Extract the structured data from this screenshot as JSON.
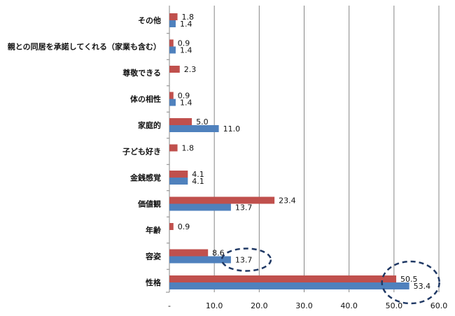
{
  "chart_data": {
    "type": "bar",
    "orientation": "horizontal",
    "categories": [
      "その他",
      "親との同居を承諾してくれる（家業も含む）",
      "尊敬できる",
      "体の相性",
      "家庭的",
      "子ども好き",
      "金銭感覚",
      "価値観",
      "年齢",
      "容姿",
      "性格"
    ],
    "series": [
      {
        "values": [
          1.8,
          0.9,
          2.3,
          0.9,
          5.0,
          1.8,
          4.1,
          23.4,
          0.9,
          8.6,
          50.5
        ],
        "color": "#c0504d"
      },
      {
        "values": [
          1.4,
          1.4,
          null,
          1.4,
          11.0,
          null,
          4.1,
          13.7,
          null,
          13.7,
          53.4
        ],
        "color": "#4f81bd"
      }
    ],
    "data_labels": [
      [
        "1.8",
        "0.9",
        "2.3",
        "0.9",
        "5.0",
        "1.8",
        "4.1",
        "23.4",
        "0.9",
        "8.6",
        "50.5"
      ],
      [
        "1.4",
        "1.4",
        "",
        "1.4",
        "11.0",
        "",
        "4.1",
        "13.7",
        "",
        "13.7",
        "53.4"
      ]
    ],
    "xlim": [
      0,
      60
    ],
    "x_ticks": [
      "-",
      "10.0",
      "20.0",
      "30.0",
      "40.0",
      "50.0",
      "60.0"
    ],
    "grid": "vertical",
    "highlights": [
      "容姿 13.7",
      "性格 50.5 / 53.4"
    ],
    "highlight_style": "dashed-ellipse",
    "highlight_color": "#1f3864"
  }
}
